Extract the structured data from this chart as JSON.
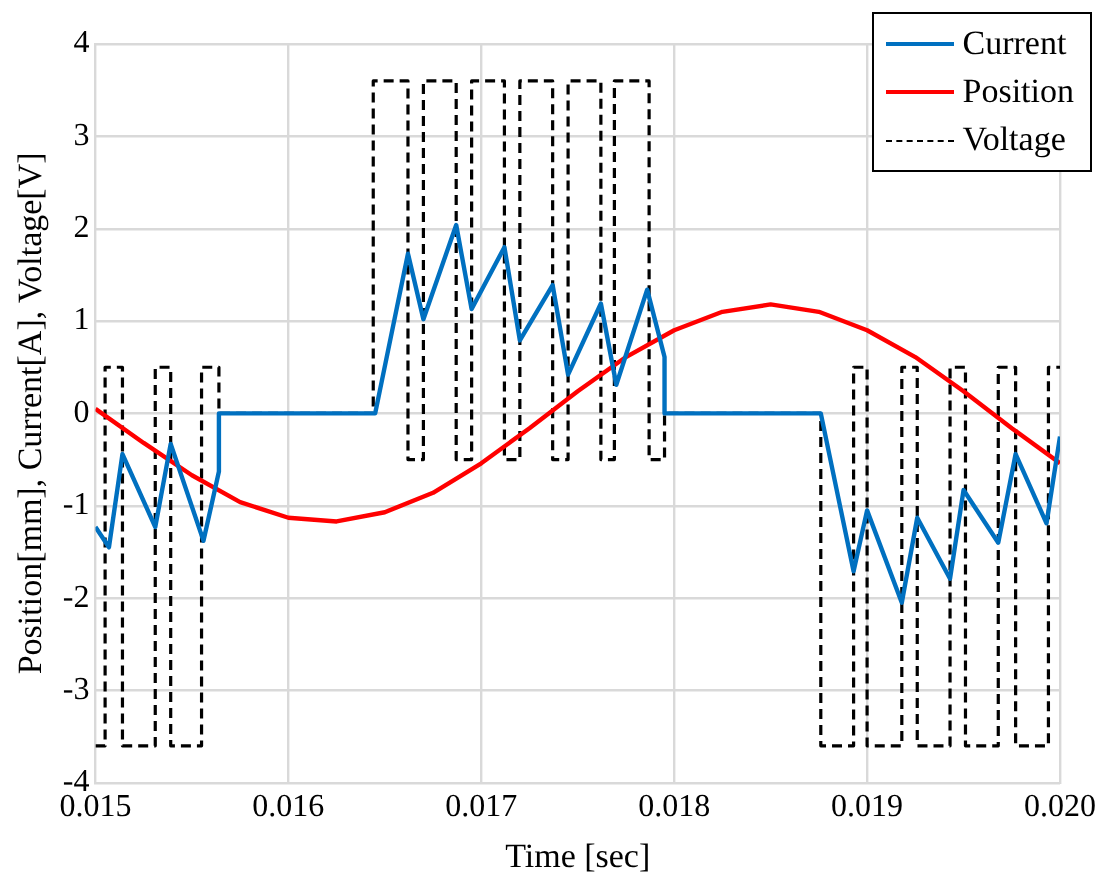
{
  "chart_data": {
    "type": "line",
    "xlabel": "Time [sec]",
    "ylabel": "Position[mm], Current[A], Voltage[V]",
    "xlim": [
      0.015,
      0.02
    ],
    "xticks": [
      0.015,
      0.016,
      0.017,
      0.018,
      0.019,
      {
        "value": 0.02,
        "label": "0.020"
      }
    ],
    "ylim": [
      -4,
      4
    ],
    "yticks": [
      -4,
      -3,
      -2,
      -1,
      0,
      1,
      2,
      3,
      4
    ],
    "grid": true,
    "legend": "top right",
    "marker": "none",
    "series": [
      {
        "name": "Current",
        "color": "#0070c0",
        "line_style": "solid",
        "x": [
          0.015,
          0.01507,
          0.01514,
          0.01531,
          0.01539,
          0.01556,
          0.01564,
          0.01564,
          0.01645,
          0.01662,
          0.0167,
          0.01687,
          0.01695,
          0.01712,
          0.0172,
          0.01737,
          0.01745,
          0.01762,
          0.0177,
          0.01786,
          0.01795,
          0.01795,
          0.01876,
          0.01893,
          0.019,
          0.01918,
          0.01926,
          0.01943,
          0.0195,
          0.01968,
          0.01977,
          0.01993,
          0.02
        ],
        "values": [
          -1.23,
          -1.45,
          -0.44,
          -1.23,
          -0.33,
          -1.38,
          -0.63,
          0,
          0,
          1.73,
          1.02,
          2.04,
          1.13,
          1.8,
          0.79,
          1.39,
          0.42,
          1.19,
          0.31,
          1.34,
          0.61,
          0,
          0,
          -1.71,
          -1.05,
          -2.05,
          -1.13,
          -1.79,
          -0.83,
          -1.4,
          -0.44,
          -1.19,
          -0.25
        ]
      },
      {
        "name": "Position",
        "color": "#ff0000",
        "line_style": "solid",
        "x": [
          0.015,
          0.01525,
          0.0155,
          0.01575,
          0.016,
          0.01625,
          0.0165,
          0.01675,
          0.017,
          0.01725,
          0.0175,
          0.01775,
          0.018,
          0.01825,
          0.0185,
          0.01875,
          0.019,
          0.01925,
          0.0195,
          0.01975,
          0.02
        ],
        "values": [
          0.05,
          -0.32,
          -0.67,
          -0.96,
          -1.13,
          -1.17,
          -1.07,
          -0.86,
          -0.54,
          -0.16,
          0.24,
          0.61,
          0.9,
          1.1,
          1.18,
          1.1,
          0.9,
          0.61,
          0.24,
          -0.16,
          -0.54
        ]
      },
      {
        "name": "Voltage",
        "color": "#000000",
        "line_style": "dashed",
        "x": [
          0.015,
          0.01505,
          0.01505,
          0.01514,
          0.01514,
          0.01531,
          0.01531,
          0.01539,
          0.01539,
          0.01555,
          0.01555,
          0.01564,
          0.01564,
          0.01644,
          0.01644,
          0.01662,
          0.01662,
          0.0167,
          0.0167,
          0.01687,
          0.01687,
          0.01695,
          0.01695,
          0.01712,
          0.01712,
          0.0172,
          0.0172,
          0.01737,
          0.01737,
          0.01745,
          0.01745,
          0.01762,
          0.01762,
          0.01769,
          0.01769,
          0.01787,
          0.01787,
          0.01795,
          0.01795,
          0.01876,
          0.01876,
          0.01893,
          0.01893,
          0.019,
          0.019,
          0.01918,
          0.01918,
          0.01926,
          0.01926,
          0.01943,
          0.01943,
          0.01951,
          0.01951,
          0.01968,
          0.01968,
          0.01977,
          0.01977,
          0.01994,
          0.01994,
          0.02
        ],
        "values": [
          -3.6,
          -3.6,
          0.5,
          0.5,
          -3.6,
          -3.6,
          0.5,
          0.5,
          -3.6,
          -3.6,
          0.5,
          0.5,
          0,
          0,
          3.6,
          3.6,
          -0.5,
          -0.5,
          3.6,
          3.6,
          -0.5,
          -0.5,
          3.6,
          3.6,
          -0.5,
          -0.5,
          3.6,
          3.6,
          -0.5,
          -0.5,
          3.6,
          3.6,
          -0.5,
          -0.5,
          3.6,
          3.6,
          -0.5,
          -0.5,
          0,
          0,
          -3.6,
          -3.6,
          0.5,
          0.5,
          -3.6,
          -3.6,
          0.5,
          0.5,
          -3.6,
          -3.6,
          0.5,
          0.5,
          -3.6,
          -3.6,
          0.5,
          0.5,
          -3.6,
          -3.6,
          0.5,
          0.5
        ]
      }
    ]
  }
}
